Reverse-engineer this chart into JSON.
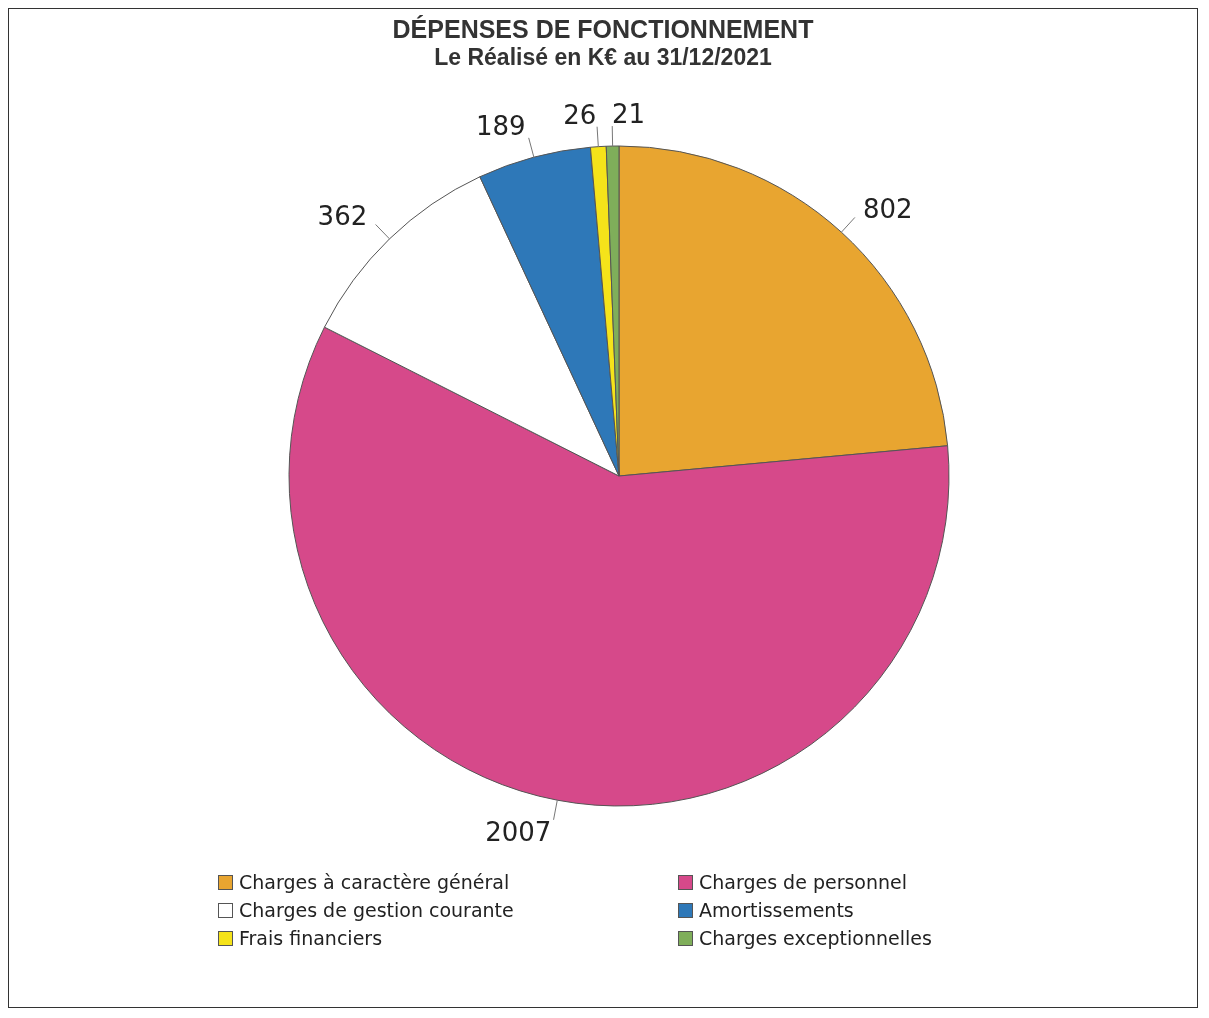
{
  "chart_data": {
    "type": "pie",
    "title": "DÉPENSES DE FONCTIONNEMENT",
    "subtitle": "Le Réalisé en K€ au 31/12/2021",
    "categories": [
      "Charges à caractère général",
      "Charges de personnel",
      "Charges de gestion courante",
      "Amortissements",
      "Frais financiers",
      "Charges exceptionnelles"
    ],
    "values": [
      802,
      2007,
      362,
      189,
      26,
      21
    ],
    "colors": [
      "#e8a530",
      "#d6498a",
      "#ffffff",
      "#2e78b8",
      "#f5e31a",
      "#7fae5a"
    ],
    "data_labels": true,
    "legend": "bottom"
  }
}
